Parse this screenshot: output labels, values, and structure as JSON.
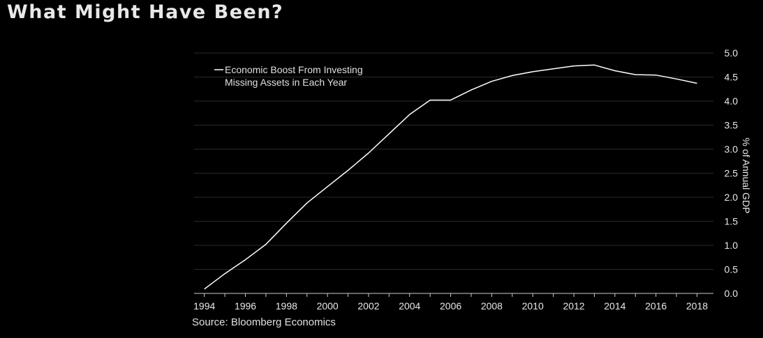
{
  "title": "What Might Have Been?",
  "source": "Source: Bloomberg Economics",
  "chart_data": {
    "type": "line",
    "ylabel": "% of Annual GDP",
    "xlim": [
      1993.5,
      2018.8
    ],
    "ylim": [
      0,
      5
    ],
    "y_ticks": [
      0.0,
      0.5,
      1.0,
      1.5,
      2.0,
      2.5,
      3.0,
      3.5,
      4.0,
      4.5,
      5.0
    ],
    "y_tick_labels": [
      "0.0",
      "0.5",
      "1.0",
      "1.5",
      "2.0",
      "2.5",
      "3.0",
      "3.5",
      "4.0",
      "4.5",
      "5.0"
    ],
    "x_ticks": [
      1994,
      1996,
      1998,
      2000,
      2002,
      2004,
      2006,
      2008,
      2010,
      2012,
      2014,
      2016,
      2018
    ],
    "x_tick_labels": [
      "1994",
      "1996",
      "1998",
      "2000",
      "2002",
      "2004",
      "2006",
      "2008",
      "2010",
      "2012",
      "2014",
      "2016",
      "2018"
    ],
    "y_axis_side": "right",
    "grid": "horizontal",
    "legend": {
      "position": "top-left",
      "lines": [
        "Economic Boost From Investing",
        "Missing Assets in Each Year"
      ]
    },
    "series": [
      {
        "name": "Economic Boost From Investing Missing Assets in Each Year",
        "color": "#ffffff",
        "x": [
          1994,
          1995,
          1996,
          1997,
          1998,
          1999,
          2000,
          2001,
          2002,
          2003,
          2004,
          2005,
          2006,
          2007,
          2008,
          2009,
          2010,
          2011,
          2012,
          2013,
          2014,
          2015,
          2016,
          2017,
          2018
        ],
        "y": [
          0.09,
          0.41,
          0.7,
          1.02,
          1.46,
          1.88,
          2.22,
          2.56,
          2.92,
          3.32,
          3.72,
          4.02,
          4.02,
          4.23,
          4.41,
          4.53,
          4.61,
          4.67,
          4.73,
          4.75,
          4.63,
          4.55,
          4.54,
          4.46,
          4.37
        ]
      }
    ]
  }
}
